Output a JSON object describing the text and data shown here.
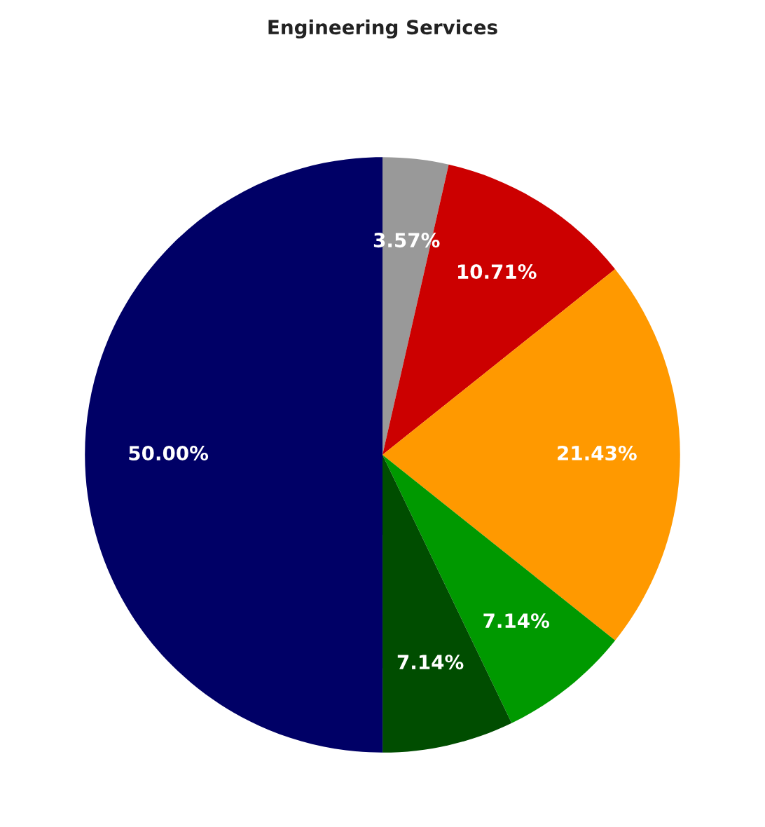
{
  "chart_data": {
    "type": "pie",
    "title": "Engineering Services",
    "categories": [
      null,
      null,
      null,
      null,
      null,
      null
    ],
    "values": [
      3.57,
      10.71,
      21.43,
      7.14,
      7.14,
      50.0
    ],
    "value_labels": [
      "3.57%",
      "10.71%",
      "21.43%",
      "7.14%",
      "7.14%",
      "50.00%"
    ],
    "colors": [
      "#999999",
      "#cc0000",
      "#ff9900",
      "#009900",
      "#004d00",
      "#000066"
    ]
  }
}
